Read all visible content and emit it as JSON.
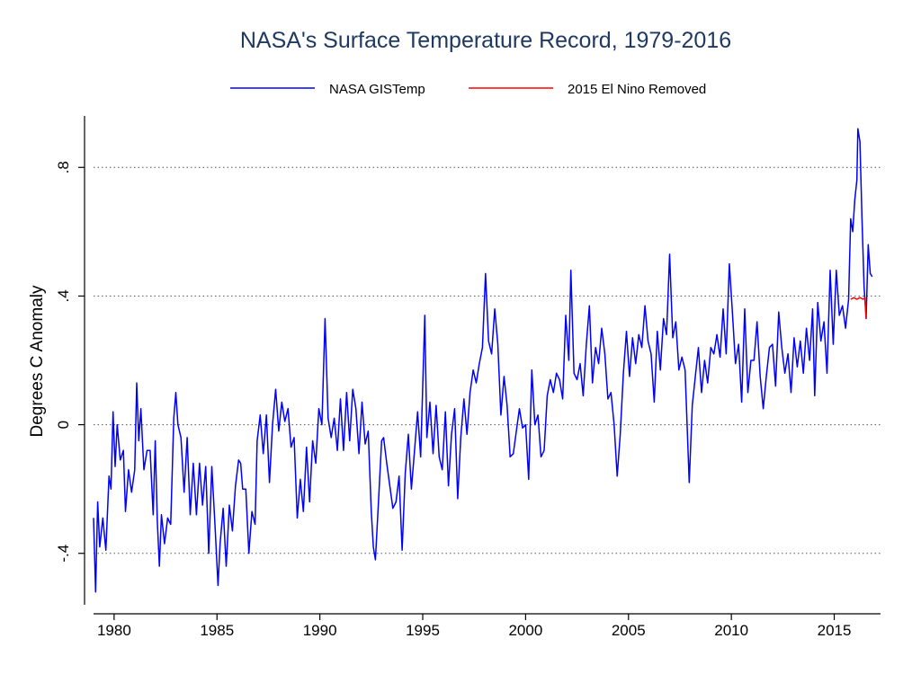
{
  "chart_data": {
    "type": "line",
    "title": "NASA's Surface Temperature Record, 1979-2016",
    "xlabel": "",
    "ylabel": "Degrees C Anomaly",
    "xlim": [
      1979,
      2017.25
    ],
    "ylim": [
      -0.56,
      0.96
    ],
    "grid": "horizontal dotted",
    "legend_position": "top",
    "x_ticks": [
      1980,
      1985,
      1990,
      1995,
      2000,
      2005,
      2010,
      2015
    ],
    "y_ticks": [
      -0.4,
      0,
      0.4,
      0.8
    ],
    "y_tick_labels": [
      "-.4",
      "0",
      ".4",
      ".8"
    ],
    "series": [
      {
        "name": "NASA GISTemp",
        "color": "#0000ff",
        "points": [
          [
            1979.0,
            -0.29
          ],
          [
            1979.1,
            -0.52
          ],
          [
            1979.2,
            -0.24
          ],
          [
            1979.3,
            -0.38
          ],
          [
            1979.45,
            -0.29
          ],
          [
            1979.6,
            -0.39
          ],
          [
            1979.75,
            -0.16
          ],
          [
            1979.85,
            -0.2
          ],
          [
            1979.95,
            0.04
          ],
          [
            1980.05,
            -0.13
          ],
          [
            1980.15,
            0.0
          ],
          [
            1980.3,
            -0.11
          ],
          [
            1980.45,
            -0.08
          ],
          [
            1980.55,
            -0.27
          ],
          [
            1980.7,
            -0.14
          ],
          [
            1980.85,
            -0.21
          ],
          [
            1981.0,
            -0.14
          ],
          [
            1981.1,
            0.13
          ],
          [
            1981.2,
            -0.05
          ],
          [
            1981.3,
            0.05
          ],
          [
            1981.45,
            -0.14
          ],
          [
            1981.6,
            -0.08
          ],
          [
            1981.75,
            -0.08
          ],
          [
            1981.9,
            -0.28
          ],
          [
            1982.0,
            -0.05
          ],
          [
            1982.1,
            -0.3
          ],
          [
            1982.2,
            -0.44
          ],
          [
            1982.3,
            -0.28
          ],
          [
            1982.45,
            -0.37
          ],
          [
            1982.6,
            -0.29
          ],
          [
            1982.75,
            -0.31
          ],
          [
            1982.9,
            0.02
          ],
          [
            1983.0,
            0.1
          ],
          [
            1983.1,
            0.0
          ],
          [
            1983.25,
            -0.04
          ],
          [
            1983.4,
            -0.21
          ],
          [
            1983.55,
            -0.04
          ],
          [
            1983.7,
            -0.28
          ],
          [
            1983.85,
            -0.12
          ],
          [
            1984.0,
            -0.28
          ],
          [
            1984.15,
            -0.12
          ],
          [
            1984.3,
            -0.25
          ],
          [
            1984.45,
            -0.13
          ],
          [
            1984.6,
            -0.4
          ],
          [
            1984.75,
            -0.13
          ],
          [
            1984.9,
            -0.31
          ],
          [
            1985.05,
            -0.5
          ],
          [
            1985.15,
            -0.37
          ],
          [
            1985.3,
            -0.26
          ],
          [
            1985.45,
            -0.44
          ],
          [
            1985.6,
            -0.25
          ],
          [
            1985.75,
            -0.33
          ],
          [
            1985.9,
            -0.19
          ],
          [
            1986.05,
            -0.11
          ],
          [
            1986.15,
            -0.12
          ],
          [
            1986.25,
            -0.2
          ],
          [
            1986.4,
            -0.2
          ],
          [
            1986.55,
            -0.4
          ],
          [
            1986.7,
            -0.27
          ],
          [
            1986.85,
            -0.31
          ],
          [
            1986.95,
            -0.05
          ],
          [
            1987.1,
            0.03
          ],
          [
            1987.25,
            -0.09
          ],
          [
            1987.4,
            0.03
          ],
          [
            1987.55,
            -0.18
          ],
          [
            1987.7,
            0.0
          ],
          [
            1987.85,
            0.11
          ],
          [
            1988.0,
            -0.02
          ],
          [
            1988.15,
            0.07
          ],
          [
            1988.3,
            0.01
          ],
          [
            1988.45,
            0.05
          ],
          [
            1988.6,
            -0.07
          ],
          [
            1988.75,
            -0.04
          ],
          [
            1988.9,
            -0.29
          ],
          [
            1989.05,
            -0.17
          ],
          [
            1989.2,
            -0.27
          ],
          [
            1989.35,
            -0.07
          ],
          [
            1989.5,
            -0.24
          ],
          [
            1989.65,
            -0.05
          ],
          [
            1989.8,
            -0.12
          ],
          [
            1989.95,
            0.05
          ],
          [
            1990.1,
            0.0
          ],
          [
            1990.25,
            0.33
          ],
          [
            1990.4,
            0.02
          ],
          [
            1990.55,
            -0.04
          ],
          [
            1990.7,
            0.02
          ],
          [
            1990.85,
            -0.08
          ],
          [
            1991.0,
            0.08
          ],
          [
            1991.15,
            -0.08
          ],
          [
            1991.3,
            0.1
          ],
          [
            1991.45,
            -0.05
          ],
          [
            1991.6,
            0.11
          ],
          [
            1991.75,
            0.05
          ],
          [
            1991.9,
            -0.09
          ],
          [
            1992.05,
            0.07
          ],
          [
            1992.2,
            -0.06
          ],
          [
            1992.35,
            -0.02
          ],
          [
            1992.5,
            -0.27
          ],
          [
            1992.6,
            -0.38
          ],
          [
            1992.7,
            -0.42
          ],
          [
            1992.85,
            -0.24
          ],
          [
            1993.0,
            -0.05
          ],
          [
            1993.1,
            -0.04
          ],
          [
            1993.25,
            -0.12
          ],
          [
            1993.4,
            -0.19
          ],
          [
            1993.55,
            -0.26
          ],
          [
            1993.7,
            -0.24
          ],
          [
            1993.85,
            -0.16
          ],
          [
            1994.0,
            -0.39
          ],
          [
            1994.15,
            -0.15
          ],
          [
            1994.3,
            -0.03
          ],
          [
            1994.45,
            -0.2
          ],
          [
            1994.6,
            -0.08
          ],
          [
            1994.75,
            0.04
          ],
          [
            1994.9,
            -0.1
          ],
          [
            1995.1,
            0.34
          ],
          [
            1995.2,
            -0.04
          ],
          [
            1995.35,
            0.07
          ],
          [
            1995.5,
            -0.09
          ],
          [
            1995.65,
            0.06
          ],
          [
            1995.8,
            -0.1
          ],
          [
            1995.95,
            -0.14
          ],
          [
            1996.1,
            0.04
          ],
          [
            1996.25,
            -0.19
          ],
          [
            1996.4,
            -0.03
          ],
          [
            1996.55,
            0.05
          ],
          [
            1996.7,
            -0.23
          ],
          [
            1996.85,
            -0.04
          ],
          [
            1997.0,
            0.08
          ],
          [
            1997.15,
            -0.03
          ],
          [
            1997.3,
            0.1
          ],
          [
            1997.45,
            0.17
          ],
          [
            1997.6,
            0.13
          ],
          [
            1997.75,
            0.19
          ],
          [
            1997.9,
            0.24
          ],
          [
            1998.05,
            0.47
          ],
          [
            1998.2,
            0.26
          ],
          [
            1998.35,
            0.22
          ],
          [
            1998.5,
            0.36
          ],
          [
            1998.65,
            0.25
          ],
          [
            1998.8,
            0.03
          ],
          [
            1998.95,
            0.15
          ],
          [
            1999.1,
            0.06
          ],
          [
            1999.25,
            -0.1
          ],
          [
            1999.4,
            -0.09
          ],
          [
            1999.55,
            -0.02
          ],
          [
            1999.7,
            0.05
          ],
          [
            1999.85,
            -0.01
          ],
          [
            2000.0,
            0.0
          ],
          [
            2000.15,
            -0.17
          ],
          [
            2000.3,
            0.17
          ],
          [
            2000.45,
            0.0
          ],
          [
            2000.6,
            0.03
          ],
          [
            2000.75,
            -0.1
          ],
          [
            2000.9,
            -0.08
          ],
          [
            2001.05,
            0.09
          ],
          [
            2001.2,
            0.14
          ],
          [
            2001.35,
            0.1
          ],
          [
            2001.5,
            0.16
          ],
          [
            2001.65,
            0.14
          ],
          [
            2001.8,
            0.08
          ],
          [
            2001.95,
            0.34
          ],
          [
            2002.1,
            0.2
          ],
          [
            2002.2,
            0.48
          ],
          [
            2002.35,
            0.16
          ],
          [
            2002.5,
            0.14
          ],
          [
            2002.65,
            0.19
          ],
          [
            2002.8,
            0.09
          ],
          [
            2002.95,
            0.25
          ],
          [
            2003.1,
            0.37
          ],
          [
            2003.25,
            0.13
          ],
          [
            2003.4,
            0.24
          ],
          [
            2003.55,
            0.19
          ],
          [
            2003.7,
            0.3
          ],
          [
            2003.85,
            0.22
          ],
          [
            2004.0,
            0.08
          ],
          [
            2004.15,
            0.1
          ],
          [
            2004.3,
            0.0
          ],
          [
            2004.45,
            -0.16
          ],
          [
            2004.6,
            -0.03
          ],
          [
            2004.75,
            0.16
          ],
          [
            2004.9,
            0.29
          ],
          [
            2005.05,
            0.15
          ],
          [
            2005.2,
            0.27
          ],
          [
            2005.35,
            0.19
          ],
          [
            2005.5,
            0.28
          ],
          [
            2005.65,
            0.24
          ],
          [
            2005.8,
            0.37
          ],
          [
            2005.95,
            0.26
          ],
          [
            2006.1,
            0.22
          ],
          [
            2006.25,
            0.07
          ],
          [
            2006.4,
            0.29
          ],
          [
            2006.55,
            0.17
          ],
          [
            2006.7,
            0.33
          ],
          [
            2006.85,
            0.28
          ],
          [
            2007.0,
            0.53
          ],
          [
            2007.15,
            0.27
          ],
          [
            2007.3,
            0.32
          ],
          [
            2007.45,
            0.17
          ],
          [
            2007.6,
            0.21
          ],
          [
            2007.75,
            0.17
          ],
          [
            2007.95,
            -0.18
          ],
          [
            2008.1,
            0.06
          ],
          [
            2008.25,
            0.15
          ],
          [
            2008.4,
            0.24
          ],
          [
            2008.55,
            0.1
          ],
          [
            2008.7,
            0.2
          ],
          [
            2008.85,
            0.13
          ],
          [
            2009.0,
            0.24
          ],
          [
            2009.15,
            0.22
          ],
          [
            2009.3,
            0.28
          ],
          [
            2009.45,
            0.21
          ],
          [
            2009.6,
            0.36
          ],
          [
            2009.75,
            0.22
          ],
          [
            2009.9,
            0.5
          ],
          [
            2010.05,
            0.35
          ],
          [
            2010.2,
            0.19
          ],
          [
            2010.35,
            0.25
          ],
          [
            2010.5,
            0.07
          ],
          [
            2010.65,
            0.36
          ],
          [
            2010.8,
            0.1
          ],
          [
            2010.95,
            0.2
          ],
          [
            2011.1,
            0.2
          ],
          [
            2011.25,
            0.32
          ],
          [
            2011.4,
            0.15
          ],
          [
            2011.55,
            0.05
          ],
          [
            2011.7,
            0.15
          ],
          [
            2011.85,
            0.24
          ],
          [
            2012.0,
            0.25
          ],
          [
            2012.15,
            0.12
          ],
          [
            2012.3,
            0.35
          ],
          [
            2012.45,
            0.24
          ],
          [
            2012.6,
            0.16
          ],
          [
            2012.75,
            0.22
          ],
          [
            2012.9,
            0.1
          ],
          [
            2013.05,
            0.27
          ],
          [
            2013.2,
            0.18
          ],
          [
            2013.35,
            0.26
          ],
          [
            2013.5,
            0.16
          ],
          [
            2013.65,
            0.3
          ],
          [
            2013.8,
            0.2
          ],
          [
            2013.95,
            0.36
          ],
          [
            2014.05,
            0.09
          ],
          [
            2014.2,
            0.38
          ],
          [
            2014.35,
            0.26
          ],
          [
            2014.5,
            0.32
          ],
          [
            2014.65,
            0.16
          ],
          [
            2014.8,
            0.48
          ],
          [
            2014.95,
            0.25
          ],
          [
            2015.1,
            0.48
          ],
          [
            2015.25,
            0.34
          ],
          [
            2015.4,
            0.37
          ],
          [
            2015.55,
            0.3
          ],
          [
            2015.7,
            0.39
          ],
          [
            2015.8,
            0.64
          ],
          [
            2015.9,
            0.6
          ],
          [
            2016.0,
            0.7
          ],
          [
            2016.1,
            0.76
          ],
          [
            2016.15,
            0.92
          ],
          [
            2016.25,
            0.88
          ],
          [
            2016.35,
            0.64
          ],
          [
            2016.45,
            0.43
          ],
          [
            2016.55,
            0.33
          ],
          [
            2016.65,
            0.56
          ],
          [
            2016.75,
            0.47
          ],
          [
            2016.85,
            0.46
          ]
        ]
      },
      {
        "name": "2015 El Nino Removed",
        "color": "#ff0000",
        "points": [
          [
            2015.8,
            0.39
          ],
          [
            2015.95,
            0.395
          ],
          [
            2016.1,
            0.39
          ],
          [
            2016.25,
            0.395
          ],
          [
            2016.4,
            0.39
          ],
          [
            2016.5,
            0.395
          ],
          [
            2016.55,
            0.33
          ]
        ]
      }
    ]
  }
}
